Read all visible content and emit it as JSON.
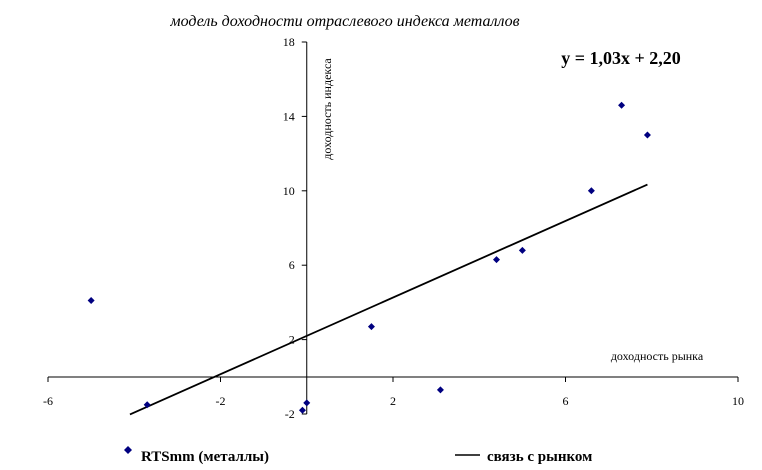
{
  "chart_data": {
    "type": "scatter",
    "title": "модель доходности отраслевого индекса металлов",
    "xlabel": "доходность рынка",
    "ylabel": "доходность индекса",
    "equation": "y = 1,03x + 2,20",
    "xlim": [
      -6,
      10
    ],
    "ylim": [
      -2,
      18
    ],
    "x_ticks": [
      "-6",
      "-2",
      "2",
      "6",
      "10"
    ],
    "y_ticks": [
      "-2",
      "2",
      "6",
      "10",
      "14",
      "18"
    ],
    "grid": false,
    "legend_position": "bottom",
    "series": [
      {
        "name": "RTSmm (металлы)",
        "kind": "scatter",
        "color": "#000080",
        "points": [
          {
            "x": -5.0,
            "y": 4.1
          },
          {
            "x": -3.7,
            "y": -1.5
          },
          {
            "x": -0.1,
            "y": -1.8
          },
          {
            "x": 0.0,
            "y": -1.4
          },
          {
            "x": 1.5,
            "y": 2.7
          },
          {
            "x": 3.1,
            "y": -0.7
          },
          {
            "x": 4.4,
            "y": 6.3
          },
          {
            "x": 5.0,
            "y": 6.8
          },
          {
            "x": 6.6,
            "y": 10.0
          },
          {
            "x": 7.3,
            "y": 14.6
          },
          {
            "x": 7.9,
            "y": 13.0
          }
        ]
      },
      {
        "name": "связь с рынком",
        "kind": "line",
        "color": "#000000",
        "slope": 1.03,
        "intercept": 2.2,
        "x_range": [
          -4.1,
          7.9
        ]
      }
    ]
  }
}
